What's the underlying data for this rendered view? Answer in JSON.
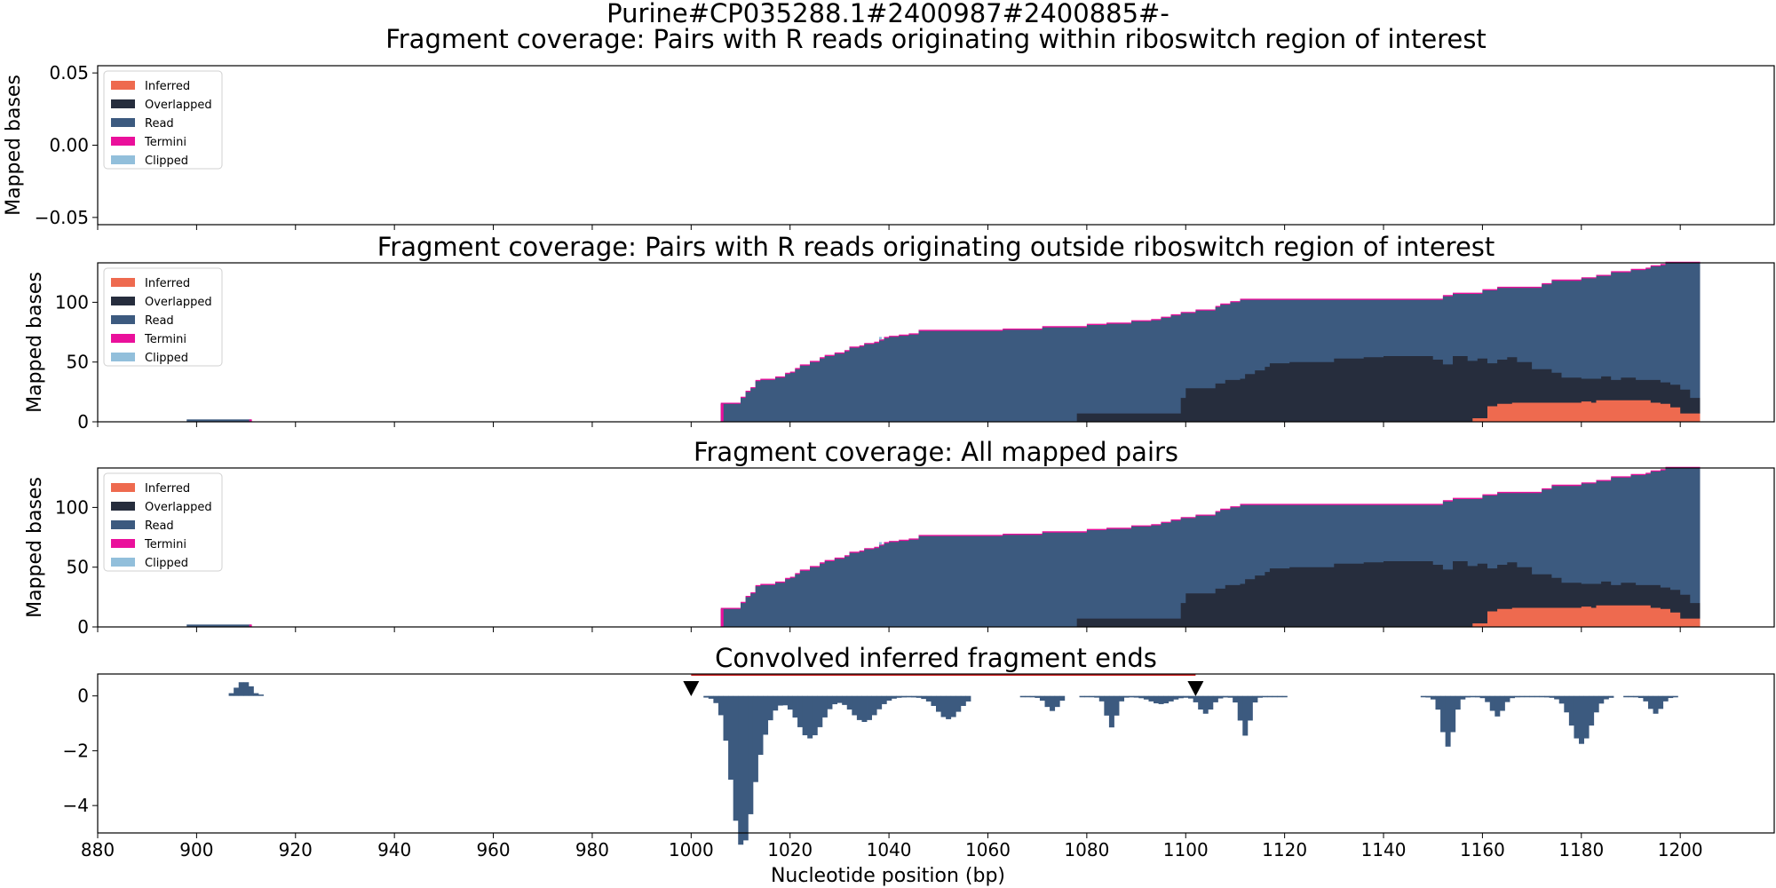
{
  "figure": {
    "suptitle": "Purine#CP035288.1#2400987#2400885#-",
    "xlabel": "Nucleotide position (bp)",
    "xlim": [
      880,
      1219
    ],
    "xticks": [
      880,
      900,
      920,
      940,
      960,
      980,
      1000,
      1020,
      1040,
      1060,
      1080,
      1100,
      1120,
      1140,
      1160,
      1180,
      1200
    ],
    "colors": {
      "Inferred": "#ee6a4f",
      "Overlapped": "#262d3d",
      "Read": "#3c5a7f",
      "Termini": "#ea109b",
      "Clipped": "#92bfdb",
      "conv": "#3c5a7f",
      "region_line": "#cc2222",
      "marker": "#000000"
    }
  },
  "chart_data": [
    {
      "type": "area",
      "title": "Fragment coverage: Pairs with R reads originating within riboswitch region of interest",
      "ylabel": "Mapped bases",
      "ylim": [
        -0.055,
        0.055
      ],
      "yticks": [
        -0.05,
        0.0,
        0.05
      ],
      "yticklabels": [
        "−0.05",
        "0.00",
        "0.05"
      ],
      "legend": [
        "Inferred",
        "Overlapped",
        "Read",
        "Termini",
        "Clipped"
      ],
      "legend_position": "upper-left",
      "empty": true
    },
    {
      "type": "area",
      "title": "Fragment coverage: Pairs with R reads originating outside riboswitch region of interest",
      "ylabel": "Mapped bases",
      "ylim": [
        0,
        133
      ],
      "yticks": [
        0,
        50,
        100
      ],
      "legend": [
        "Inferred",
        "Overlapped",
        "Read",
        "Termini",
        "Clipped"
      ],
      "legend_position": "upper-left",
      "small_block": {
        "x0": 898,
        "x1": 911,
        "y": 2
      },
      "total_steps": [
        [
          1006,
          15
        ],
        [
          1007,
          15
        ],
        [
          1010,
          20
        ],
        [
          1011,
          25
        ],
        [
          1012,
          28
        ],
        [
          1013,
          34
        ],
        [
          1014,
          35
        ],
        [
          1017,
          37
        ],
        [
          1019,
          40
        ],
        [
          1020,
          41
        ],
        [
          1021,
          44
        ],
        [
          1022,
          47
        ],
        [
          1024,
          50
        ],
        [
          1026,
          53
        ],
        [
          1027,
          55
        ],
        [
          1029,
          57
        ],
        [
          1031,
          59
        ],
        [
          1032,
          62
        ],
        [
          1034,
          63
        ],
        [
          1035,
          65
        ],
        [
          1037,
          66
        ],
        [
          1038,
          68
        ],
        [
          1039,
          70
        ],
        [
          1040,
          71
        ],
        [
          1042,
          72
        ],
        [
          1044,
          73
        ],
        [
          1046,
          76
        ],
        [
          1063,
          77
        ],
        [
          1071,
          79
        ],
        [
          1080,
          81
        ],
        [
          1084,
          82
        ],
        [
          1089,
          84
        ],
        [
          1093,
          85
        ],
        [
          1095,
          87
        ],
        [
          1097,
          89
        ],
        [
          1099,
          91
        ],
        [
          1102,
          93
        ],
        [
          1106,
          96
        ],
        [
          1107,
          98
        ],
        [
          1109,
          100
        ],
        [
          1111,
          102
        ],
        [
          1152,
          105
        ],
        [
          1154,
          107
        ],
        [
          1160,
          110
        ],
        [
          1163,
          112
        ],
        [
          1172,
          115
        ],
        [
          1174,
          118
        ],
        [
          1180,
          120
        ],
        [
          1183,
          122
        ],
        [
          1186,
          125
        ],
        [
          1190,
          127
        ],
        [
          1193,
          128
        ],
        [
          1194,
          130
        ],
        [
          1196,
          131
        ],
        [
          1197,
          133
        ],
        [
          1204,
          0
        ]
      ],
      "overlapped_steps": [
        [
          1078,
          7
        ],
        [
          1099,
          20
        ],
        [
          1100,
          28
        ],
        [
          1106,
          32
        ],
        [
          1108,
          35
        ],
        [
          1111,
          36
        ],
        [
          1112,
          40
        ],
        [
          1114,
          43
        ],
        [
          1116,
          46
        ],
        [
          1117,
          49
        ],
        [
          1121,
          50
        ],
        [
          1130,
          53
        ],
        [
          1136,
          54
        ],
        [
          1140,
          55
        ],
        [
          1150,
          52
        ],
        [
          1152,
          48
        ],
        [
          1154,
          55
        ],
        [
          1157,
          51
        ],
        [
          1159,
          53
        ],
        [
          1161,
          49
        ],
        [
          1163,
          52
        ],
        [
          1165,
          54
        ],
        [
          1167,
          50
        ],
        [
          1170,
          44
        ],
        [
          1174,
          41
        ],
        [
          1176,
          37
        ],
        [
          1180,
          36
        ],
        [
          1184,
          38
        ],
        [
          1186,
          35
        ],
        [
          1188,
          37
        ],
        [
          1191,
          35
        ],
        [
          1196,
          33
        ],
        [
          1198,
          31
        ],
        [
          1200,
          27
        ],
        [
          1202,
          20
        ],
        [
          1204,
          0
        ]
      ],
      "inferred_steps": [
        [
          1158,
          3
        ],
        [
          1161,
          13
        ],
        [
          1163,
          15
        ],
        [
          1166,
          16
        ],
        [
          1180,
          17
        ],
        [
          1182,
          16
        ],
        [
          1183,
          18
        ],
        [
          1194,
          16
        ],
        [
          1196,
          15
        ],
        [
          1198,
          12
        ],
        [
          1200,
          7
        ],
        [
          1204,
          0
        ]
      ]
    },
    {
      "type": "area",
      "title": "Fragment coverage: All mapped pairs",
      "ylabel": "Mapped bases",
      "ylim": [
        0,
        133
      ],
      "yticks": [
        0,
        50,
        100
      ],
      "legend": [
        "Inferred",
        "Overlapped",
        "Read",
        "Termini",
        "Clipped"
      ],
      "legend_position": "upper-left",
      "same_as_previous": true
    },
    {
      "type": "bar",
      "title": "Convolved inferred fragment ends",
      "ylabel": "",
      "ylim": [
        -5,
        0.8
      ],
      "yticks": [
        -4,
        -2,
        0
      ],
      "yticklabels": [
        "−4",
        "−2",
        "0"
      ],
      "markers": [
        1000,
        1102
      ],
      "region_line": [
        1000,
        1102
      ],
      "positive_bars": [
        [
          907,
          0.1
        ],
        [
          908,
          0.3
        ],
        [
          909,
          0.5
        ],
        [
          910,
          0.5
        ],
        [
          911,
          0.35
        ],
        [
          912,
          0.1
        ],
        [
          913,
          0.05
        ]
      ],
      "peaks": [
        [
          1010,
          4.6,
          2.0
        ],
        [
          1013,
          1.6,
          2.5
        ],
        [
          1024,
          1.5,
          2.5
        ],
        [
          1035,
          0.9,
          2.5
        ],
        [
          1052,
          0.8,
          2.2
        ],
        [
          1073,
          0.5,
          1.2
        ],
        [
          1085,
          1.1,
          1.0
        ],
        [
          1095,
          0.25,
          2.0
        ],
        [
          1104,
          0.6,
          1.3
        ],
        [
          1112,
          1.4,
          1.0
        ],
        [
          1153,
          1.8,
          1.2
        ],
        [
          1163,
          0.7,
          1.2
        ],
        [
          1180,
          1.7,
          2.0
        ],
        [
          1195,
          0.6,
          1.2
        ]
      ],
      "ranges": [
        [
          1003,
          1056
        ],
        [
          1067,
          1075
        ],
        [
          1079,
          1120
        ],
        [
          1148,
          1167
        ],
        [
          1168,
          1186
        ],
        [
          1189,
          1199
        ]
      ]
    }
  ]
}
